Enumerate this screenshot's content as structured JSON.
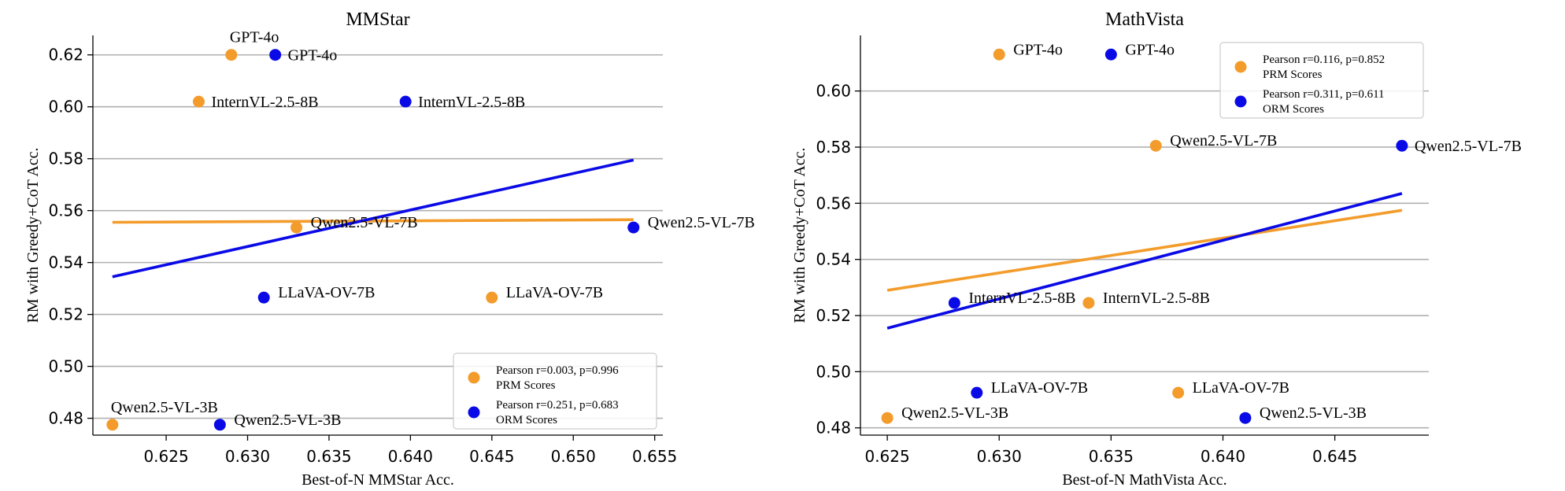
{
  "chart_data": [
    {
      "type": "scatter",
      "title": "MMStar",
      "xlabel": "Best-of-N MMStar Acc.",
      "ylabel": "RM with Greedy+CoT Acc.",
      "xlim": [
        0.6205,
        0.6555
      ],
      "ylim": [
        0.4735,
        0.6275
      ],
      "xticks": [
        "0.625",
        "0.630",
        "0.635",
        "0.640",
        "0.645",
        "0.650",
        "0.655"
      ],
      "xtick_values": [
        0.625,
        0.63,
        0.635,
        0.64,
        0.645,
        0.65,
        0.655
      ],
      "yticks": [
        "0.48",
        "0.50",
        "0.52",
        "0.54",
        "0.56",
        "0.58",
        "0.60",
        "0.62"
      ],
      "ytick_values": [
        0.48,
        0.5,
        0.52,
        0.54,
        0.56,
        0.58,
        0.6,
        0.62
      ],
      "grid": "horizontal",
      "legend_position": "lower-right",
      "series": [
        {
          "name": "PRM Scores",
          "color": "#f39c2b",
          "points": [
            {
              "label": "GPT-4o",
              "x": 0.629,
              "y": 0.62,
              "label_pos": "above"
            },
            {
              "label": "InternVL-2.5-8B",
              "x": 0.627,
              "y": 0.602,
              "label_pos": "right"
            },
            {
              "label": "Qwen2.5-VL-7B",
              "x": 0.633,
              "y": 0.5535,
              "label_pos": "right-up"
            },
            {
              "label": "LLaVA-OV-7B",
              "x": 0.645,
              "y": 0.5265,
              "label_pos": "right-up"
            },
            {
              "label": "Qwen2.5-VL-3B",
              "x": 0.6217,
              "y": 0.4775,
              "label_pos": "above"
            }
          ],
          "fit": {
            "x0": 0.6217,
            "x1": 0.6537,
            "y0": 0.5555,
            "y1": 0.5565
          }
        },
        {
          "name": "ORM Scores",
          "color": "#0a0ae6",
          "points": [
            {
              "label": "GPT-4o",
              "x": 0.6317,
              "y": 0.62,
              "label_pos": "right"
            },
            {
              "label": "InternVL-2.5-8B",
              "x": 0.6397,
              "y": 0.602,
              "label_pos": "right"
            },
            {
              "label": "Qwen2.5-VL-7B",
              "x": 0.6537,
              "y": 0.5535,
              "label_pos": "right-up"
            },
            {
              "label": "LLaVA-OV-7B",
              "x": 0.631,
              "y": 0.5265,
              "label_pos": "right-up"
            },
            {
              "label": "Qwen2.5-VL-3B",
              "x": 0.6283,
              "y": 0.4775,
              "label_pos": "right-up"
            }
          ],
          "fit": {
            "x0": 0.6217,
            "x1": 0.6537,
            "y0": 0.5345,
            "y1": 0.5795
          }
        }
      ],
      "legend": [
        {
          "text": "Pearson r=0.003, p=0.996",
          "subtext": "PRM Scores",
          "color": "#f39c2b"
        },
        {
          "text": "Pearson r=0.251, p=0.683",
          "subtext": "ORM Scores",
          "color": "#0a0ae6"
        }
      ]
    },
    {
      "type": "scatter",
      "title": "MathVista",
      "xlabel": "Best-of-N MathVista Acc.",
      "ylabel": "RM with Greedy+CoT Acc.",
      "xlim": [
        0.6238,
        0.6492
      ],
      "ylim": [
        0.4774,
        0.6198
      ],
      "xticks": [
        "0.625",
        "0.630",
        "0.635",
        "0.640",
        "0.645"
      ],
      "xtick_values": [
        0.625,
        0.63,
        0.635,
        0.64,
        0.645
      ],
      "yticks": [
        "0.48",
        "0.50",
        "0.52",
        "0.54",
        "0.56",
        "0.58",
        "0.60"
      ],
      "ytick_values": [
        0.48,
        0.5,
        0.52,
        0.54,
        0.56,
        0.58,
        0.6
      ],
      "grid": "horizontal",
      "legend_position": "upper-right",
      "series": [
        {
          "name": "PRM Scores",
          "color": "#f39c2b",
          "points": [
            {
              "label": "GPT-4o",
              "x": 0.63,
              "y": 0.613,
              "label_pos": "right-up"
            },
            {
              "label": "Qwen2.5-VL-7B",
              "x": 0.637,
              "y": 0.5805,
              "label_pos": "right-up"
            },
            {
              "label": "InternVL-2.5-8B",
              "x": 0.634,
              "y": 0.5245,
              "label_pos": "right-up"
            },
            {
              "label": "LLaVA-OV-7B",
              "x": 0.638,
              "y": 0.4925,
              "label_pos": "right-up"
            },
            {
              "label": "Qwen2.5-VL-3B",
              "x": 0.625,
              "y": 0.4835,
              "label_pos": "right-up"
            }
          ],
          "fit": {
            "x0": 0.625,
            "x1": 0.648,
            "y0": 0.529,
            "y1": 0.5575
          }
        },
        {
          "name": "ORM Scores",
          "color": "#0a0ae6",
          "points": [
            {
              "label": "GPT-4o",
              "x": 0.635,
              "y": 0.613,
              "label_pos": "right-up"
            },
            {
              "label": "Qwen2.5-VL-7B",
              "x": 0.648,
              "y": 0.5805,
              "label_pos": "right"
            },
            {
              "label": "InternVL-2.5-8B",
              "x": 0.628,
              "y": 0.5245,
              "label_pos": "right-up"
            },
            {
              "label": "LLaVA-OV-7B",
              "x": 0.629,
              "y": 0.4925,
              "label_pos": "right-up"
            },
            {
              "label": "Qwen2.5-VL-3B",
              "x": 0.641,
              "y": 0.4835,
              "label_pos": "right-up"
            }
          ],
          "fit": {
            "x0": 0.625,
            "x1": 0.648,
            "y0": 0.5155,
            "y1": 0.5635
          }
        }
      ],
      "legend": [
        {
          "text": "Pearson r=0.116, p=0.852",
          "subtext": "PRM Scores",
          "color": "#f39c2b"
        },
        {
          "text": "Pearson r=0.311, p=0.611",
          "subtext": "ORM Scores",
          "color": "#0a0ae6"
        }
      ]
    }
  ]
}
